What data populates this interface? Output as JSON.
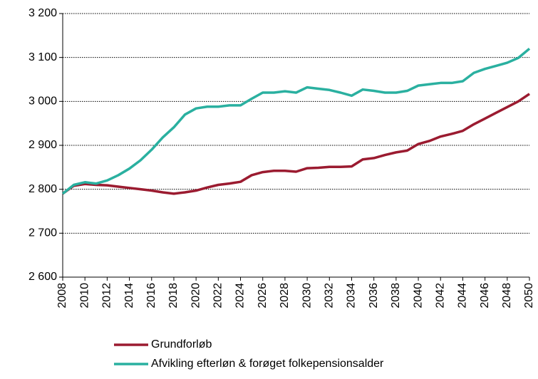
{
  "chart_data": {
    "type": "line",
    "x": [
      2008,
      2009,
      2010,
      2011,
      2012,
      2013,
      2014,
      2015,
      2016,
      2017,
      2018,
      2019,
      2020,
      2021,
      2022,
      2023,
      2024,
      2025,
      2026,
      2027,
      2028,
      2029,
      2030,
      2031,
      2032,
      2033,
      2034,
      2035,
      2036,
      2037,
      2038,
      2039,
      2040,
      2041,
      2042,
      2043,
      2044,
      2045,
      2046,
      2047,
      2048,
      2049,
      2050
    ],
    "series": [
      {
        "name": "Grundforløb",
        "color": "#9b1b30",
        "values": [
          2790,
          2808,
          2812,
          2810,
          2809,
          2806,
          2803,
          2800,
          2797,
          2793,
          2790,
          2793,
          2797,
          2804,
          2810,
          2813,
          2817,
          2832,
          2839,
          2842,
          2842,
          2840,
          2848,
          2849,
          2851,
          2851,
          2852,
          2868,
          2871,
          2878,
          2884,
          2888,
          2903,
          2910,
          2920,
          2926,
          2933,
          2948,
          2961,
          2974,
          2987,
          3000,
          3017
        ]
      },
      {
        "name": "Afvikling efterløn & forøget folkepensionsalder",
        "color": "#2ab0a0",
        "values": [
          2790,
          2810,
          2816,
          2813,
          2820,
          2832,
          2847,
          2866,
          2890,
          2918,
          2941,
          2970,
          2984,
          2988,
          2988,
          2991,
          2991,
          3006,
          3020,
          3020,
          3023,
          3020,
          3032,
          3029,
          3026,
          3020,
          3013,
          3027,
          3024,
          3020,
          3020,
          3024,
          3036,
          3039,
          3042,
          3042,
          3046,
          3065,
          3074,
          3081,
          3088,
          3099,
          3120
        ]
      }
    ],
    "xlim": [
      2008,
      2050
    ],
    "xticks": [
      2008,
      2010,
      2012,
      2014,
      2016,
      2018,
      2020,
      2022,
      2024,
      2026,
      2028,
      2030,
      2032,
      2034,
      2036,
      2038,
      2040,
      2042,
      2044,
      2046,
      2048,
      2050
    ],
    "ylim": [
      2600,
      3200
    ],
    "yticks": [
      {
        "value": 2600,
        "label": "2 600"
      },
      {
        "value": 2700,
        "label": "2 700"
      },
      {
        "value": 2800,
        "label": "2 800"
      },
      {
        "value": 2900,
        "label": "2 900"
      },
      {
        "value": 3000,
        "label": "3 000"
      },
      {
        "value": 3100,
        "label": "3 100"
      },
      {
        "value": 3200,
        "label": "3 200"
      }
    ],
    "grid": true,
    "legend": "bottom"
  }
}
